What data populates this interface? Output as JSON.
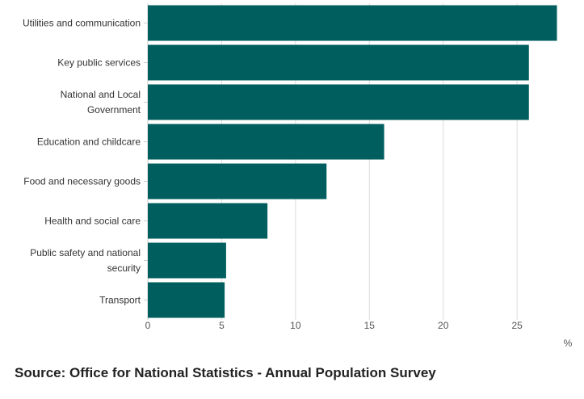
{
  "chart_data": {
    "type": "bar",
    "orientation": "horizontal",
    "categories": [
      [
        "Utilities and communication"
      ],
      [
        "Key public services"
      ],
      [
        "National and Local",
        "Government"
      ],
      [
        "Education and childcare"
      ],
      [
        "Food and necessary goods"
      ],
      [
        "Health and social care"
      ],
      [
        "Public safety and national",
        "security"
      ],
      [
        "Transport"
      ]
    ],
    "values": [
      27.7,
      25.8,
      25.8,
      16.0,
      12.1,
      8.1,
      5.3,
      5.2
    ],
    "bar_color": "#005e5e",
    "xlim": [
      0,
      28
    ],
    "xticks": [
      0,
      5,
      10,
      15,
      20,
      25
    ],
    "x_unit": "%",
    "grid": "vertical"
  },
  "source": "Source: Office for National Statistics - Annual Population Survey"
}
